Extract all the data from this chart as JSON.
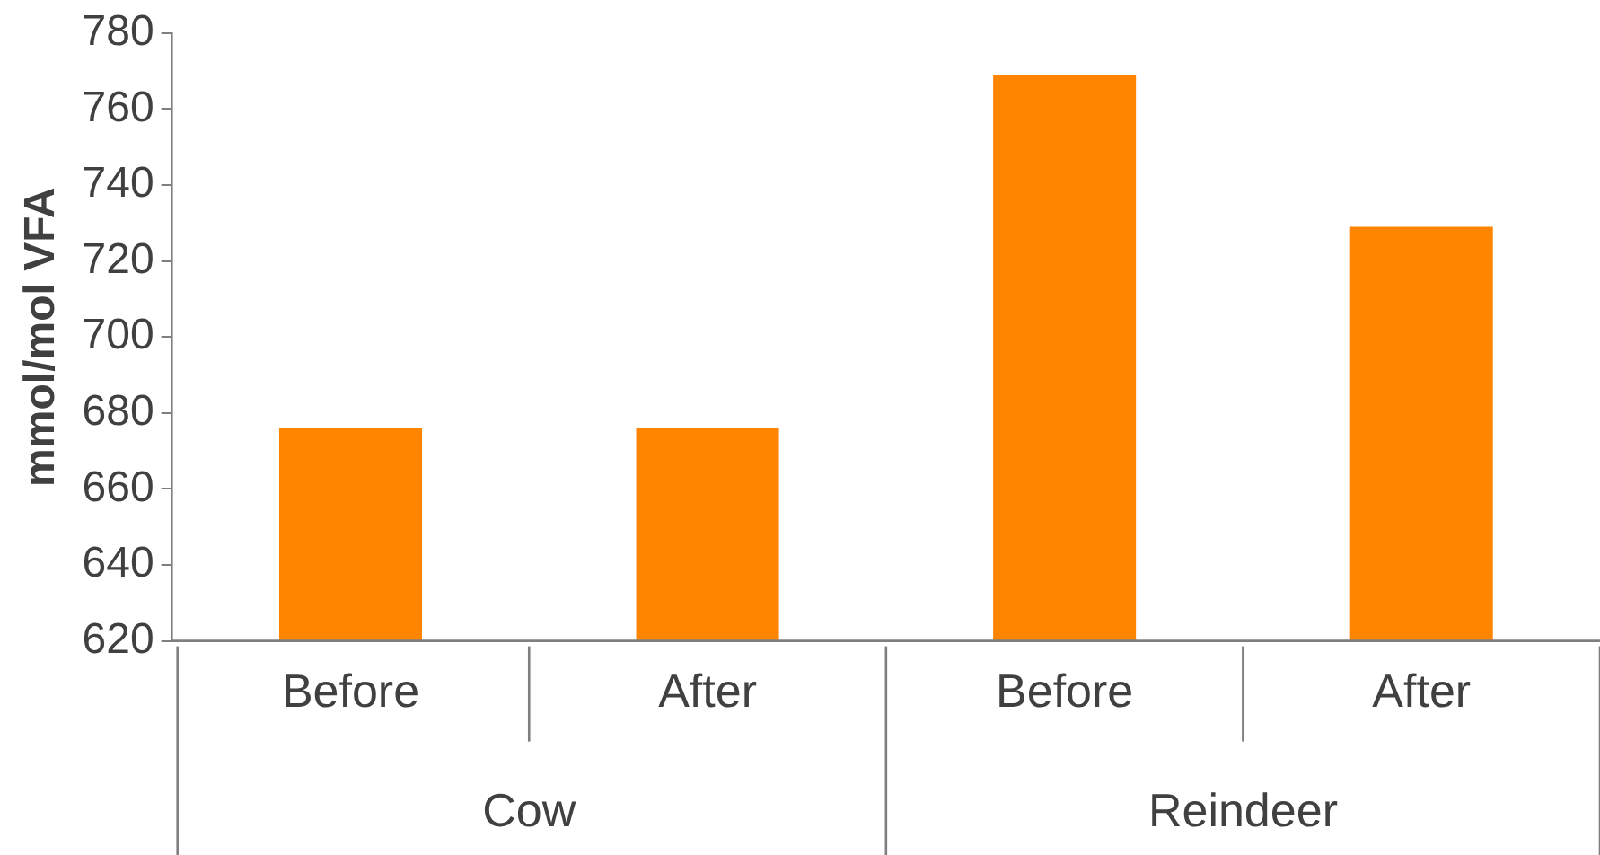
{
  "chart_data": {
    "type": "bar",
    "ylabel": "mmol/mol VFA",
    "categories": [
      "Before",
      "After",
      "Before",
      "After"
    ],
    "values": [
      676,
      676,
      769,
      729
    ],
    "color": "#ff8400",
    "ylim": [
      620,
      780
    ],
    "yticks": [
      620,
      640,
      660,
      680,
      700,
      720,
      740,
      760,
      780
    ],
    "annotations": [
      "Cow",
      "Reindeer"
    ],
    "grid": false,
    "legend": false
  }
}
